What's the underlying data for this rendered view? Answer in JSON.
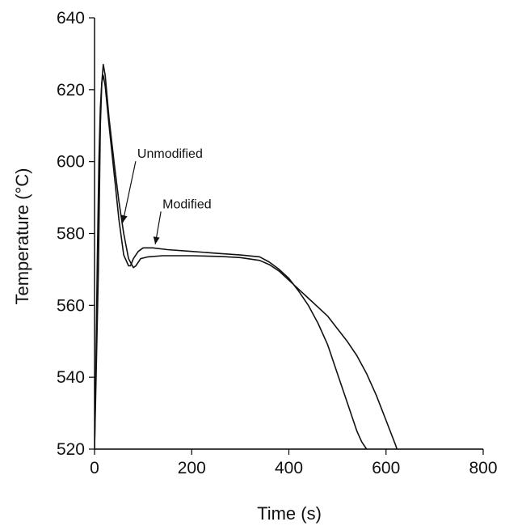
{
  "chart_data": {
    "type": "line",
    "xlabel": "Time (s)",
    "ylabel": "Temperature (°C)",
    "xlim": [
      0,
      800
    ],
    "ylim": [
      520,
      640
    ],
    "x_ticks": [
      "0",
      "200",
      "400",
      "600",
      "800"
    ],
    "y_ticks": [
      "520",
      "540",
      "560",
      "580",
      "600",
      "620",
      "640"
    ],
    "grid": false,
    "series": [
      {
        "name": "Unmodified",
        "x": [
          0,
          3,
          6,
          9,
          12,
          15,
          18,
          22,
          30,
          40,
          50,
          60,
          70,
          74,
          80,
          90,
          100,
          120,
          150,
          200,
          250,
          300,
          340,
          360,
          380,
          400,
          420,
          440,
          460,
          480,
          500,
          520,
          540,
          550,
          560,
          564
        ],
        "y": [
          520,
          545,
          575,
          600,
          615,
          622,
          624,
          621,
          610,
          597,
          584,
          574,
          571,
          571,
          573,
          575,
          576,
          576,
          575.5,
          575,
          574.5,
          574,
          573.5,
          572,
          570,
          567.5,
          564,
          560,
          555,
          549,
          541,
          533,
          525,
          522,
          520,
          519
        ]
      },
      {
        "name": "Modified",
        "x": [
          0,
          8,
          12,
          15,
          18,
          22,
          30,
          40,
          50,
          60,
          70,
          80,
          85,
          95,
          110,
          140,
          200,
          260,
          300,
          340,
          360,
          380,
          400,
          420,
          440,
          460,
          480,
          500,
          520,
          540,
          560,
          580,
          600,
          620,
          625
        ],
        "y": [
          520,
          570,
          610,
          622,
          627,
          624,
          612,
          600,
          589,
          580,
          573,
          570.5,
          571,
          573,
          573.5,
          573.8,
          573.8,
          573.6,
          573.3,
          572.5,
          571.3,
          569.5,
          567,
          564.5,
          562,
          559.5,
          557,
          553.5,
          550,
          546,
          541,
          535,
          528,
          521,
          519
        ]
      }
    ],
    "annotations": [
      {
        "text": "Unmodified",
        "series": "Unmodified",
        "x": 58,
        "y": 583,
        "text_x": 88,
        "text_y": 601
      },
      {
        "text": "Modified",
        "series": "Modified",
        "x": 125,
        "y": 577,
        "text_x": 140,
        "text_y": 587
      }
    ]
  }
}
